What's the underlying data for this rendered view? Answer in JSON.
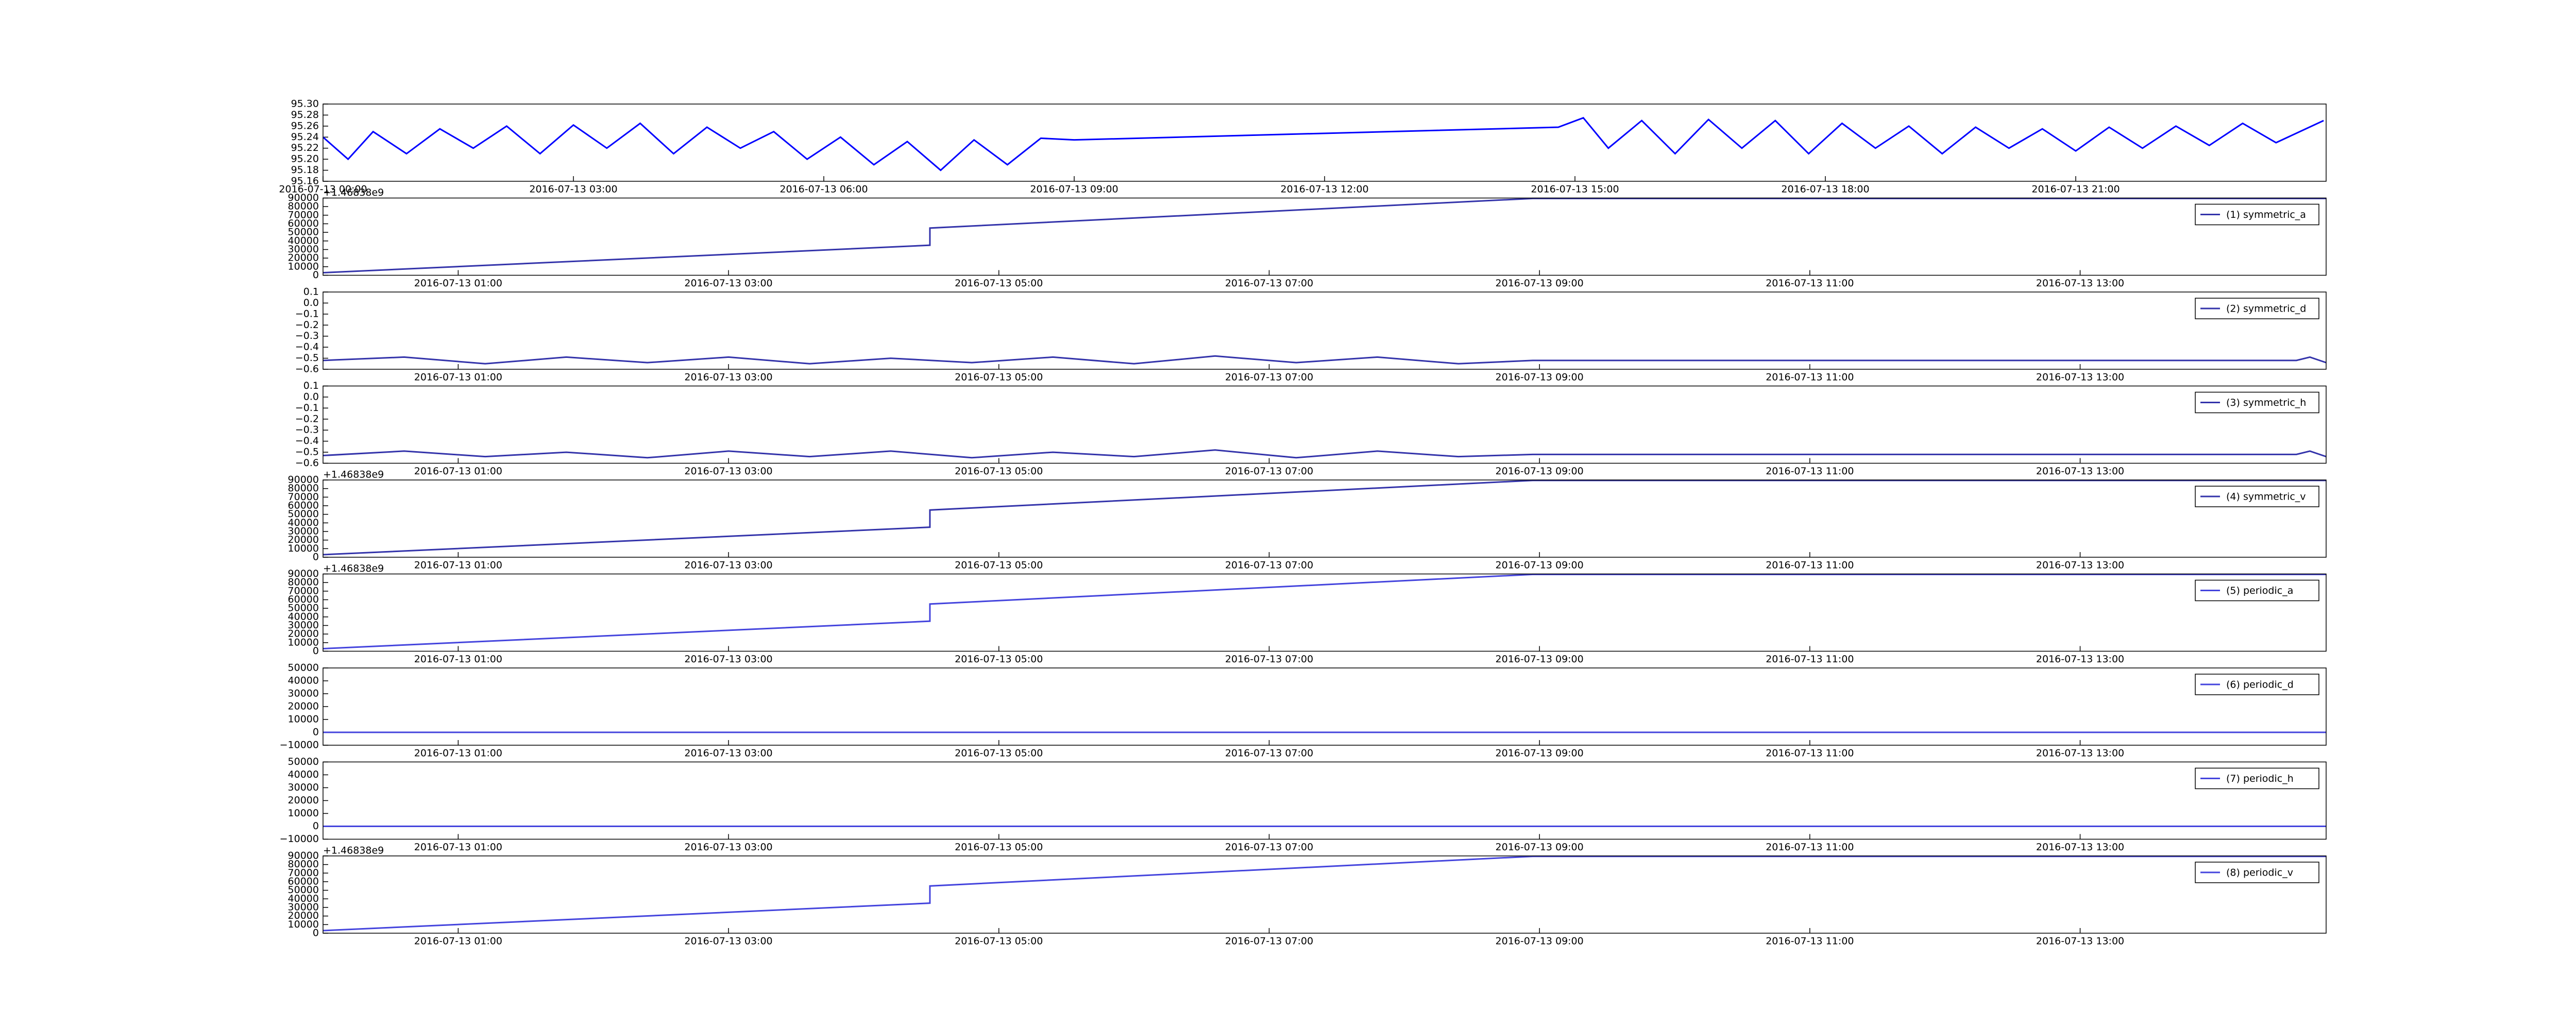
{
  "chart_data": [
    {
      "type": "line",
      "xlim": [
        0,
        24
      ],
      "xticks": [
        {
          "value": 0,
          "label": "2016-07-13 00:00"
        },
        {
          "value": 3,
          "label": "2016-07-13 03:00"
        },
        {
          "value": 6,
          "label": "2016-07-13 06:00"
        },
        {
          "value": 9,
          "label": "2016-07-13 09:00"
        },
        {
          "value": 12,
          "label": "2016-07-13 12:00"
        },
        {
          "value": 15,
          "label": "2016-07-13 15:00"
        },
        {
          "value": 18,
          "label": "2016-07-13 18:00"
        },
        {
          "value": 21,
          "label": "2016-07-13 21:00"
        }
      ],
      "ylim": [
        95.16,
        95.3
      ],
      "yticks": [
        95.16,
        95.18,
        {
          "value": 95.2,
          "label": "95.20"
        },
        95.22,
        95.24,
        95.26,
        95.28,
        {
          "value": 95.3,
          "label": "95.30"
        }
      ],
      "x": [
        0,
        0.3,
        0.6,
        1.0,
        1.4,
        1.8,
        2.2,
        2.6,
        3.0,
        3.4,
        3.8,
        4.2,
        4.6,
        5.0,
        5.4,
        5.8,
        6.2,
        6.6,
        7.0,
        7.4,
        7.8,
        8.2,
        8.6,
        9.0,
        14.8,
        15.1,
        15.4,
        15.8,
        16.2,
        16.6,
        17.0,
        17.4,
        17.8,
        18.2,
        18.6,
        19.0,
        19.4,
        19.8,
        20.2,
        20.6,
        21.0,
        21.4,
        21.8,
        22.2,
        22.6,
        23.0,
        23.4,
        23.97
      ],
      "series": [
        {
          "color": "#0000ff",
          "values": [
            95.24,
            95.2,
            95.25,
            95.21,
            95.255,
            95.22,
            95.26,
            95.21,
            95.262,
            95.22,
            95.265,
            95.21,
            95.258,
            95.22,
            95.25,
            95.2,
            95.24,
            95.19,
            95.232,
            95.18,
            95.235,
            95.19,
            95.238,
            95.235,
            95.258,
            95.275,
            95.22,
            95.27,
            95.21,
            95.272,
            95.22,
            95.27,
            95.21,
            95.265,
            95.22,
            95.26,
            95.21,
            95.258,
            95.22,
            95.255,
            95.215,
            95.258,
            95.22,
            95.26,
            95.225,
            95.265,
            95.23,
            95.27
          ]
        }
      ]
    },
    {
      "type": "line",
      "offset_text": "+1.46838e9",
      "legend": "upper right",
      "xlim": [
        0,
        14.82
      ],
      "xticks": [
        {
          "value": 1,
          "label": "2016-07-13 01:00"
        },
        {
          "value": 3,
          "label": "2016-07-13 03:00"
        },
        {
          "value": 5,
          "label": "2016-07-13 05:00"
        },
        {
          "value": 7,
          "label": "2016-07-13 07:00"
        },
        {
          "value": 9,
          "label": "2016-07-13 09:00"
        },
        {
          "value": 11,
          "label": "2016-07-13 11:00"
        },
        {
          "value": 13,
          "label": "2016-07-13 13:00"
        }
      ],
      "ylim": [
        0,
        90000
      ],
      "yticks": [
        0,
        10000,
        20000,
        30000,
        40000,
        50000,
        60000,
        70000,
        80000,
        90000
      ],
      "x": [
        0,
        4.49,
        4.49,
        8.95,
        14.82
      ],
      "series": [
        {
          "name": "(1) symmetric_a",
          "color": "#3333aa",
          "values": [
            3000,
            35000,
            55000,
            89500,
            89500
          ]
        }
      ]
    },
    {
      "type": "line",
      "legend": "upper right",
      "xlim": [
        0,
        14.82
      ],
      "xticks": [
        {
          "value": 1,
          "label": "2016-07-13 01:00"
        },
        {
          "value": 3,
          "label": "2016-07-13 03:00"
        },
        {
          "value": 5,
          "label": "2016-07-13 05:00"
        },
        {
          "value": 7,
          "label": "2016-07-13 07:00"
        },
        {
          "value": 9,
          "label": "2016-07-13 09:00"
        },
        {
          "value": 11,
          "label": "2016-07-13 11:00"
        },
        {
          "value": 13,
          "label": "2016-07-13 13:00"
        }
      ],
      "ylim": [
        -0.6,
        0.1
      ],
      "yticks": [
        {
          "value": -0.6,
          "label": "−0.6"
        },
        {
          "value": -0.5,
          "label": "−0.5"
        },
        {
          "value": -0.4,
          "label": "−0.4"
        },
        {
          "value": -0.3,
          "label": "−0.3"
        },
        {
          "value": -0.2,
          "label": "−0.2"
        },
        {
          "value": -0.1,
          "label": "−0.1"
        },
        {
          "value": 0,
          "label": "0.0"
        },
        0.1
      ],
      "x": [
        0,
        0.6,
        1.2,
        1.8,
        2.4,
        3.0,
        3.6,
        4.2,
        4.8,
        5.4,
        6.0,
        6.6,
        7.2,
        7.8,
        8.4,
        8.95,
        14.6,
        14.7,
        14.82
      ],
      "series": [
        {
          "name": "(2) symmetric_d",
          "color": "#3333aa",
          "values": [
            -0.52,
            -0.49,
            -0.55,
            -0.49,
            -0.54,
            -0.49,
            -0.55,
            -0.5,
            -0.54,
            -0.49,
            -0.55,
            -0.48,
            -0.54,
            -0.49,
            -0.55,
            -0.52,
            -0.52,
            -0.49,
            -0.54
          ]
        }
      ]
    },
    {
      "type": "line",
      "legend": "upper right",
      "xlim": [
        0,
        14.82
      ],
      "xticks": [
        {
          "value": 1,
          "label": "2016-07-13 01:00"
        },
        {
          "value": 3,
          "label": "2016-07-13 03:00"
        },
        {
          "value": 5,
          "label": "2016-07-13 05:00"
        },
        {
          "value": 7,
          "label": "2016-07-13 07:00"
        },
        {
          "value": 9,
          "label": "2016-07-13 09:00"
        },
        {
          "value": 11,
          "label": "2016-07-13 11:00"
        },
        {
          "value": 13,
          "label": "2016-07-13 13:00"
        }
      ],
      "ylim": [
        -0.6,
        0.1
      ],
      "yticks": [
        {
          "value": -0.6,
          "label": "−0.6"
        },
        {
          "value": -0.5,
          "label": "−0.5"
        },
        {
          "value": -0.4,
          "label": "−0.4"
        },
        {
          "value": -0.3,
          "label": "−0.3"
        },
        {
          "value": -0.2,
          "label": "−0.2"
        },
        {
          "value": -0.1,
          "label": "−0.1"
        },
        {
          "value": 0,
          "label": "0.0"
        },
        0.1
      ],
      "x": [
        0,
        0.6,
        1.2,
        1.8,
        2.4,
        3.0,
        3.6,
        4.2,
        4.8,
        5.4,
        6.0,
        6.6,
        7.2,
        7.8,
        8.4,
        8.95,
        14.6,
        14.7,
        14.82
      ],
      "series": [
        {
          "name": "(3) symmetric_h",
          "color": "#3333aa",
          "values": [
            -0.53,
            -0.49,
            -0.54,
            -0.5,
            -0.55,
            -0.49,
            -0.54,
            -0.49,
            -0.55,
            -0.5,
            -0.54,
            -0.48,
            -0.55,
            -0.49,
            -0.54,
            -0.52,
            -0.52,
            -0.49,
            -0.54
          ]
        }
      ]
    },
    {
      "type": "line",
      "offset_text": "+1.46838e9",
      "legend": "upper right",
      "xlim": [
        0,
        14.82
      ],
      "xticks": [
        {
          "value": 1,
          "label": "2016-07-13 01:00"
        },
        {
          "value": 3,
          "label": "2016-07-13 03:00"
        },
        {
          "value": 5,
          "label": "2016-07-13 05:00"
        },
        {
          "value": 7,
          "label": "2016-07-13 07:00"
        },
        {
          "value": 9,
          "label": "2016-07-13 09:00"
        },
        {
          "value": 11,
          "label": "2016-07-13 11:00"
        },
        {
          "value": 13,
          "label": "2016-07-13 13:00"
        }
      ],
      "ylim": [
        0,
        90000
      ],
      "yticks": [
        0,
        10000,
        20000,
        30000,
        40000,
        50000,
        60000,
        70000,
        80000,
        90000
      ],
      "x": [
        0,
        4.49,
        4.49,
        8.95,
        14.82
      ],
      "series": [
        {
          "name": "(4) symmetric_v",
          "color": "#3333aa",
          "values": [
            3000,
            35000,
            55000,
            89500,
            89500
          ]
        }
      ]
    },
    {
      "type": "line",
      "offset_text": "+1.46838e9",
      "legend": "upper right",
      "xlim": [
        0,
        14.82
      ],
      "xticks": [
        {
          "value": 1,
          "label": "2016-07-13 01:00"
        },
        {
          "value": 3,
          "label": "2016-07-13 03:00"
        },
        {
          "value": 5,
          "label": "2016-07-13 05:00"
        },
        {
          "value": 7,
          "label": "2016-07-13 07:00"
        },
        {
          "value": 9,
          "label": "2016-07-13 09:00"
        },
        {
          "value": 11,
          "label": "2016-07-13 11:00"
        },
        {
          "value": 13,
          "label": "2016-07-13 13:00"
        }
      ],
      "ylim": [
        0,
        90000
      ],
      "yticks": [
        0,
        10000,
        20000,
        30000,
        40000,
        50000,
        60000,
        70000,
        80000,
        90000
      ],
      "x": [
        0,
        4.49,
        4.49,
        8.95,
        14.82
      ],
      "series": [
        {
          "name": "(5) periodic_a",
          "color": "#4444dd",
          "values": [
            3000,
            35000,
            55000,
            89500,
            89500
          ]
        }
      ]
    },
    {
      "type": "line",
      "legend": "upper right",
      "xlim": [
        0,
        14.82
      ],
      "xticks": [
        {
          "value": 1,
          "label": "2016-07-13 01:00"
        },
        {
          "value": 3,
          "label": "2016-07-13 03:00"
        },
        {
          "value": 5,
          "label": "2016-07-13 05:00"
        },
        {
          "value": 7,
          "label": "2016-07-13 07:00"
        },
        {
          "value": 9,
          "label": "2016-07-13 09:00"
        },
        {
          "value": 11,
          "label": "2016-07-13 11:00"
        },
        {
          "value": 13,
          "label": "2016-07-13 13:00"
        }
      ],
      "ylim": [
        -10000,
        50000
      ],
      "yticks": [
        {
          "value": -10000,
          "label": "−10000"
        },
        0,
        10000,
        20000,
        30000,
        40000,
        50000
      ],
      "x": [
        0,
        14.82
      ],
      "series": [
        {
          "name": "(6) periodic_d",
          "color": "#4444dd",
          "values": [
            0,
            0
          ]
        }
      ]
    },
    {
      "type": "line",
      "legend": "upper right",
      "xlim": [
        0,
        14.82
      ],
      "xticks": [
        {
          "value": 1,
          "label": "2016-07-13 01:00"
        },
        {
          "value": 3,
          "label": "2016-07-13 03:00"
        },
        {
          "value": 5,
          "label": "2016-07-13 05:00"
        },
        {
          "value": 7,
          "label": "2016-07-13 07:00"
        },
        {
          "value": 9,
          "label": "2016-07-13 09:00"
        },
        {
          "value": 11,
          "label": "2016-07-13 11:00"
        },
        {
          "value": 13,
          "label": "2016-07-13 13:00"
        }
      ],
      "ylim": [
        -10000,
        50000
      ],
      "yticks": [
        {
          "value": -10000,
          "label": "−10000"
        },
        0,
        10000,
        20000,
        30000,
        40000,
        50000
      ],
      "x": [
        0,
        14.82
      ],
      "series": [
        {
          "name": "(7) periodic_h",
          "color": "#4444dd",
          "values": [
            0,
            0
          ]
        }
      ]
    },
    {
      "type": "line",
      "offset_text": "+1.46838e9",
      "legend": "upper right",
      "xlim": [
        0,
        14.82
      ],
      "xticks": [
        {
          "value": 1,
          "label": "2016-07-13 01:00"
        },
        {
          "value": 3,
          "label": "2016-07-13 03:00"
        },
        {
          "value": 5,
          "label": "2016-07-13 05:00"
        },
        {
          "value": 7,
          "label": "2016-07-13 07:00"
        },
        {
          "value": 9,
          "label": "2016-07-13 09:00"
        },
        {
          "value": 11,
          "label": "2016-07-13 11:00"
        },
        {
          "value": 13,
          "label": "2016-07-13 13:00"
        }
      ],
      "ylim": [
        0,
        90000
      ],
      "yticks": [
        0,
        10000,
        20000,
        30000,
        40000,
        50000,
        60000,
        70000,
        80000,
        90000
      ],
      "x": [
        0,
        4.49,
        4.49,
        8.95,
        14.82
      ],
      "series": [
        {
          "name": "(8) periodic_v",
          "color": "#4444dd",
          "values": [
            3000,
            35000,
            55000,
            89500,
            89500
          ]
        }
      ]
    }
  ]
}
